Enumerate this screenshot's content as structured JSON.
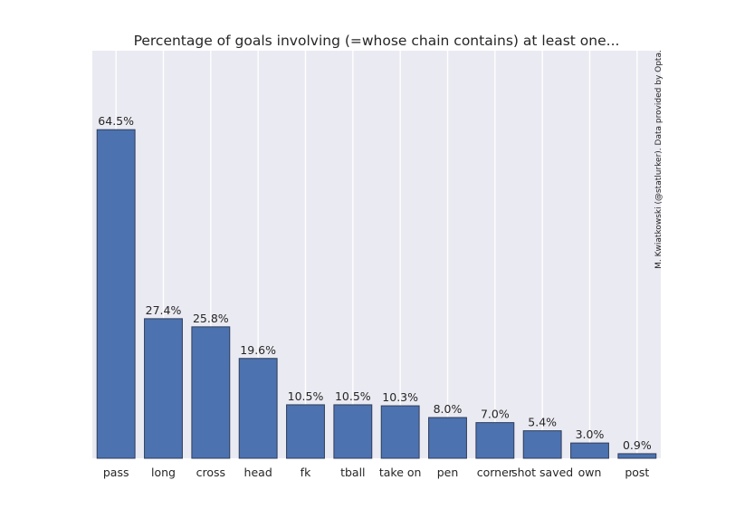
{
  "chart_data": {
    "type": "bar",
    "title": "Percentage of goals involving (=whose chain contains) at least one...",
    "credit": "M. Kwiatkowski (@statlurker). Data provided by Opta.",
    "categories": [
      "pass",
      "long",
      "cross",
      "head",
      "fk",
      "tball",
      "take on",
      "pen",
      "corner",
      "shot saved",
      "own",
      "post"
    ],
    "values": [
      64.5,
      27.4,
      25.8,
      19.6,
      10.5,
      10.5,
      10.3,
      8.0,
      7.0,
      5.4,
      3.0,
      0.9
    ],
    "data_labels": [
      "64.5%",
      "27.4%",
      "25.8%",
      "19.6%",
      "10.5%",
      "10.5%",
      "10.3%",
      "8.0%",
      "7.0%",
      "5.4%",
      "3.0%",
      "0.9%"
    ],
    "xlabel": "",
    "ylabel": "",
    "ylim": [
      0,
      80
    ],
    "y_ticks_shown": false,
    "grid": "vertical",
    "colors": {
      "bar": "#4c72b0",
      "bar_edge": "#2e3d5a",
      "plot_background": "#eaeaf2",
      "grid": "#ffffff",
      "text": "#262626"
    }
  }
}
